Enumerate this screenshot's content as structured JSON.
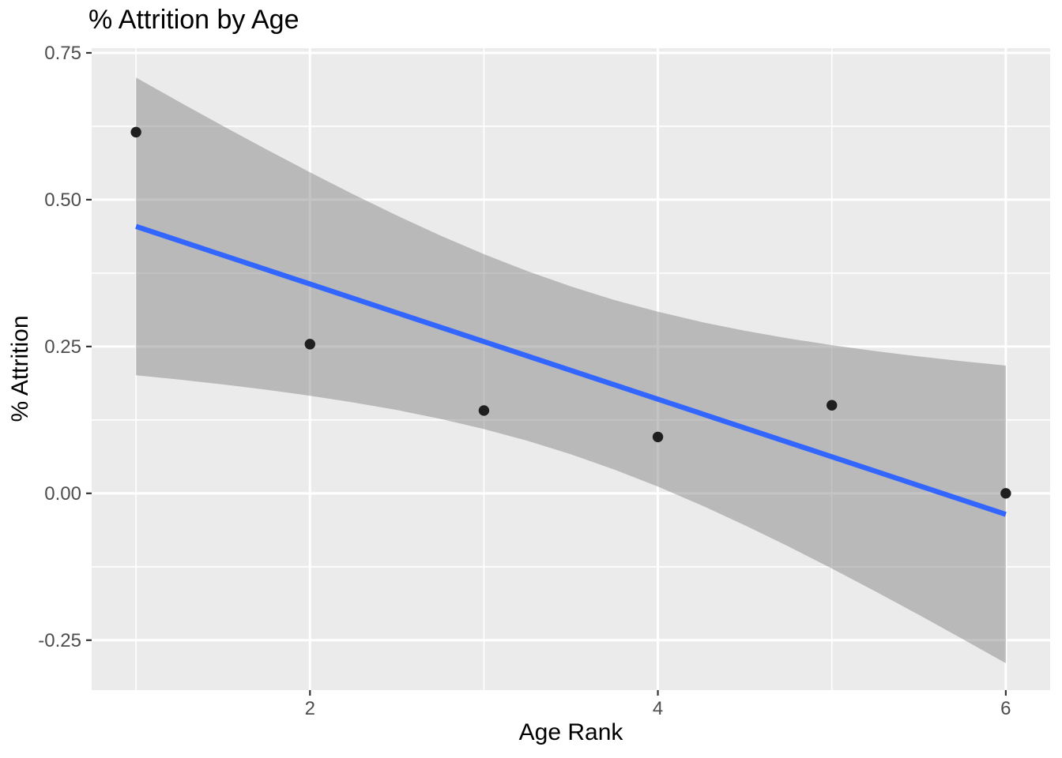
{
  "chart_data": {
    "type": "scatter",
    "title": "% Attrition by Age",
    "xlabel": "Age Rank",
    "ylabel": "% Attrition",
    "xlim": [
      0.745,
      6.255
    ],
    "ylim": [
      -0.335,
      0.758
    ],
    "grid": "on",
    "legend": "none",
    "x_major_ticks": [
      {
        "value": 2,
        "label": "2"
      },
      {
        "value": 4,
        "label": "4"
      },
      {
        "value": 6,
        "label": "6"
      }
    ],
    "x_minor_ticks": [
      1,
      3,
      5
    ],
    "y_major_ticks": [
      {
        "value": 0.75,
        "label": "0.75"
      },
      {
        "value": 0.5,
        "label": "0.50"
      },
      {
        "value": 0.25,
        "label": "0.25"
      },
      {
        "value": 0.0,
        "label": "0.00"
      },
      {
        "value": -0.25,
        "label": "-0.25"
      }
    ],
    "y_minor_ticks": [
      0.625,
      0.375,
      0.125,
      -0.125
    ],
    "points": [
      {
        "x": 1,
        "y": 0.615
      },
      {
        "x": 2,
        "y": 0.254
      },
      {
        "x": 3,
        "y": 0.141
      },
      {
        "x": 4,
        "y": 0.096
      },
      {
        "x": 5,
        "y": 0.15
      },
      {
        "x": 6,
        "y": 0.0
      }
    ],
    "regression_line": {
      "x1": 1,
      "y1": 0.4545,
      "x2": 6,
      "y2": -0.0358
    },
    "ci_band": {
      "x": [
        1,
        1.25,
        1.5,
        1.75,
        2,
        2.25,
        2.5,
        2.75,
        3,
        3.25,
        3.5,
        3.75,
        4,
        4.25,
        4.5,
        4.75,
        5,
        5.25,
        5.5,
        5.75,
        6
      ],
      "upper": [
        0.7078,
        0.6663,
        0.6255,
        0.5855,
        0.5466,
        0.509,
        0.473,
        0.4389,
        0.4072,
        0.3783,
        0.3522,
        0.3292,
        0.3092,
        0.2918,
        0.2768,
        0.2638,
        0.2524,
        0.2423,
        0.2332,
        0.225,
        0.2175
      ],
      "lower": [
        0.2012,
        0.1936,
        0.1854,
        0.1764,
        0.1662,
        0.1548,
        0.1418,
        0.1268,
        0.1095,
        0.0894,
        0.0664,
        0.0404,
        0.0114,
        -0.0203,
        -0.0543,
        -0.0903,
        -0.128,
        -0.1669,
        -0.2068,
        -0.2477,
        -0.2891
      ]
    },
    "colors": {
      "background": "#FFFFFF",
      "panel_background": "#EBEBEB",
      "gridline": "#FFFFFF",
      "ci_band_fill": "rgba(124,124,124,0.45)",
      "smooth_line": "#3366FF",
      "point": "#1F1F1F",
      "tick_mark": "#333333",
      "tick_label": "#4D4D4D",
      "title": "#000000",
      "axis_title": "#000000"
    }
  }
}
